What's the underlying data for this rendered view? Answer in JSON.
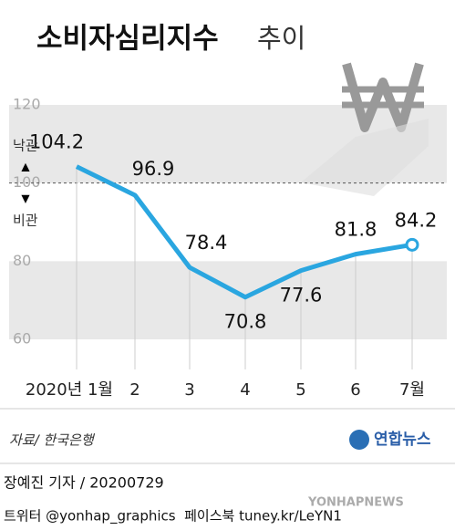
{
  "chart_data": {
    "type": "line",
    "title": "소비자심리지수",
    "subtitle": "추이",
    "categories": [
      "2020년 1월",
      "2",
      "3",
      "4",
      "5",
      "6",
      "7월"
    ],
    "series": [
      {
        "name": "소비자심리지수",
        "color": "#2aa6e0",
        "values": [
          104.2,
          96.9,
          78.4,
          70.8,
          77.6,
          81.8,
          84.2
        ]
      }
    ],
    "ylim": [
      60,
      120
    ],
    "yticks": [
      60,
      80,
      100,
      120
    ],
    "dashed_line": 100,
    "annotations": {
      "up": "낙관",
      "down": "비관"
    },
    "source": "자료/ 한국은행",
    "logo": "연합뉴스",
    "credit": "장예진 기자 / 20200729",
    "social": "트위터 @yonhap_graphics  페이스북 tuney.kr/LeYN1",
    "watermark": "YONHAPNEWS"
  }
}
